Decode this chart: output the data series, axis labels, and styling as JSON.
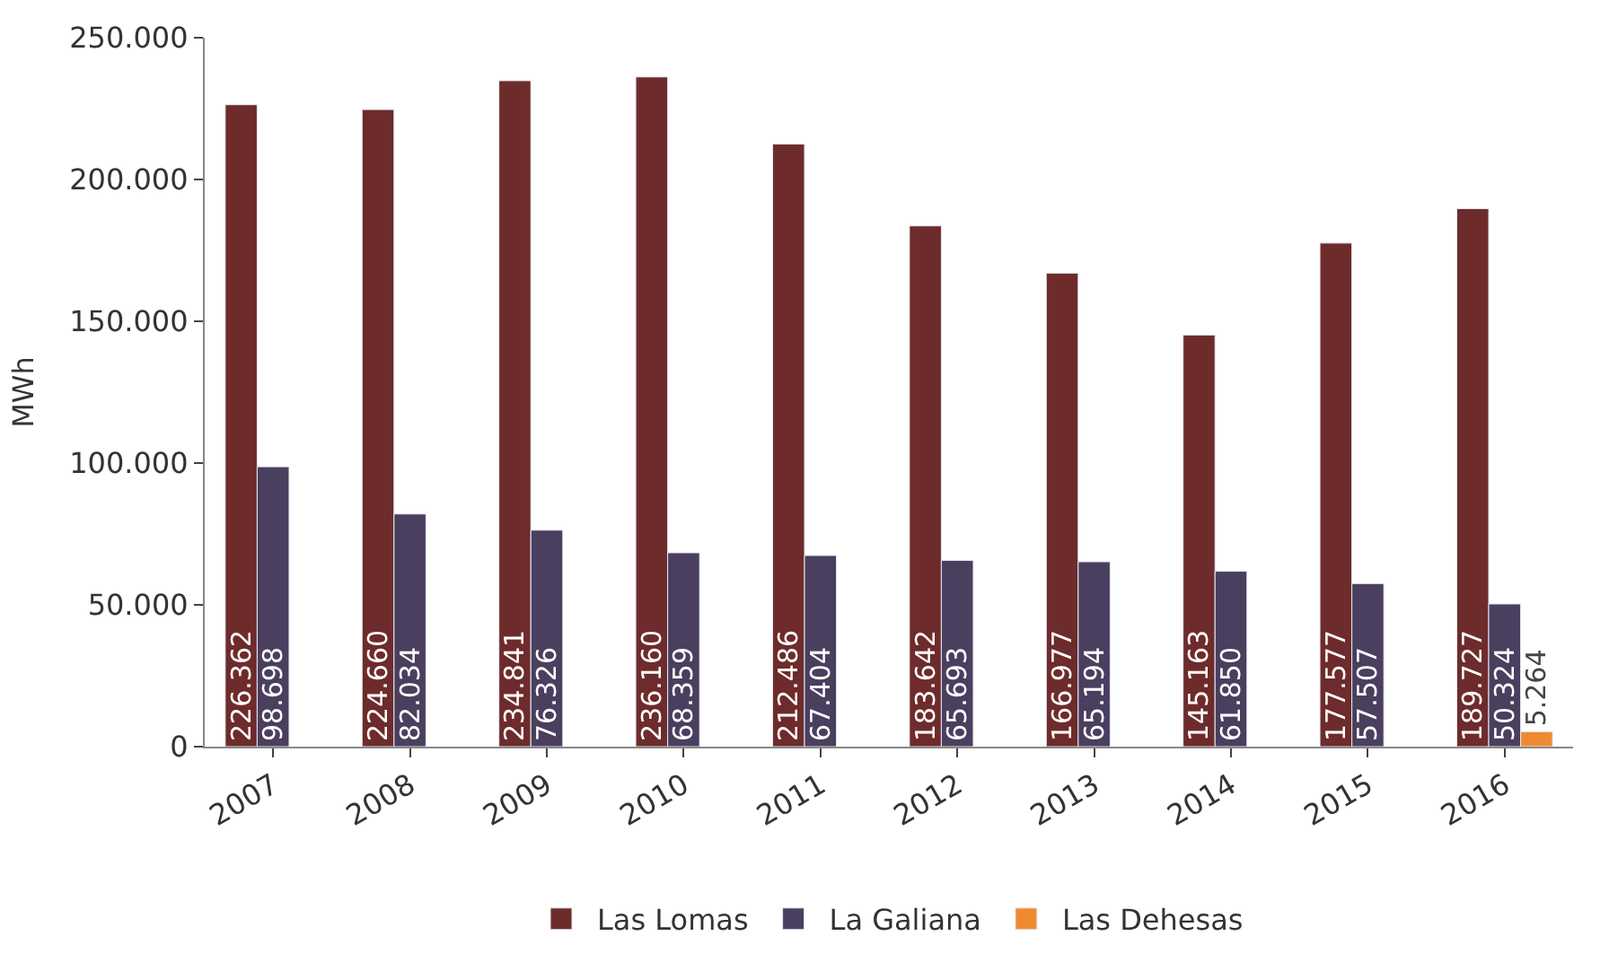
{
  "chart_data": {
    "type": "bar",
    "ylabel": "MWh",
    "categories": [
      "2007",
      "2008",
      "2009",
      "2010",
      "2011",
      "2012",
      "2013",
      "2014",
      "2015",
      "2016"
    ],
    "ylim": [
      0,
      250000
    ],
    "yticks": [
      {
        "value": 0,
        "label": "0"
      },
      {
        "value": 50000,
        "label": "50.000"
      },
      {
        "value": 100000,
        "label": "100.000"
      },
      {
        "value": 150000,
        "label": "150.000"
      },
      {
        "value": 200000,
        "label": "200.000"
      },
      {
        "value": 250000,
        "label": "250.000"
      }
    ],
    "legend": "bottom",
    "series": [
      {
        "name": "Las Lomas",
        "color": "#6e2b2b",
        "values": [
          226362,
          224660,
          234841,
          236160,
          212486,
          183642,
          166977,
          145163,
          177577,
          189727
        ],
        "value_labels": [
          "226.362",
          "224.660",
          "234.841",
          "236.160",
          "212.486",
          "183.642",
          "166.977",
          "145.163",
          "177.577",
          "189.727"
        ]
      },
      {
        "name": "La Galiana",
        "color": "#4a3f5e",
        "values": [
          98698,
          82034,
          76326,
          68359,
          67404,
          65693,
          65194,
          61850,
          57507,
          50324
        ],
        "value_labels": [
          "98.698",
          "82.034",
          "76.326",
          "68.359",
          "67.404",
          "65.693",
          "65.194",
          "61.850",
          "57.507",
          "50.324"
        ]
      },
      {
        "name": "Las Dehesas",
        "color": "#f08a30",
        "values": [
          null,
          null,
          null,
          null,
          null,
          null,
          null,
          null,
          null,
          5264
        ],
        "value_labels": [
          null,
          null,
          null,
          null,
          null,
          null,
          null,
          null,
          null,
          "5.264"
        ]
      }
    ]
  }
}
